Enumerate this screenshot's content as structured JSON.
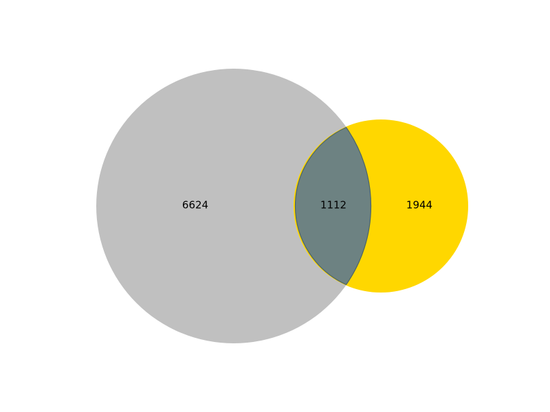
{
  "venn": {
    "left_set": {
      "only_count": "6624",
      "color": "#c0c0c0"
    },
    "right_set": {
      "only_count": "1944",
      "color": "#ffd700"
    },
    "intersection": {
      "count": "1112",
      "color": "#6d8282",
      "outline_color": "#4c6565"
    }
  }
}
